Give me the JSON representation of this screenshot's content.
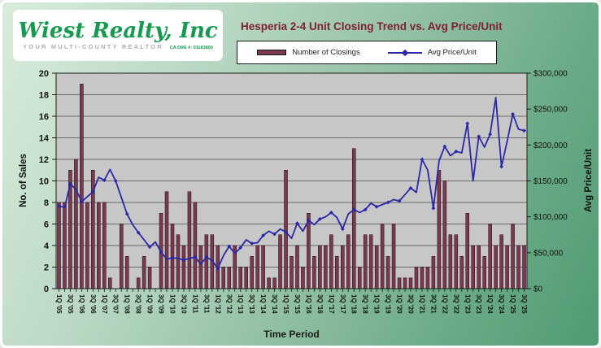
{
  "logo": {
    "name": "Wiest Realty, Inc",
    "tagline": "YOUR MULTI-COUNTY REALTOR",
    "license": "CA DRE #: 01183800",
    "brand_color": "#169a4f"
  },
  "chart": {
    "title": "Hesperia  2-4 Unit Closing Trend vs. Avg Price/Unit",
    "title_color": "#7d2030",
    "plot_bg": "#c7c7c7",
    "gridline_color": "#4a4a4a",
    "bar_color": "#7a3950",
    "line_color": "#2a28a6"
  },
  "chart_data": {
    "type": "bar",
    "subtype": "combo bar+line, dual axis",
    "title": "Hesperia  2-4 Unit Closing Trend vs. Avg Price/Unit",
    "xlabel": "Time Period",
    "legend_position": "top",
    "grid": true,
    "categories": [
      "1Q '05",
      "2Q '05",
      "3Q '05",
      "4Q '05",
      "1Q '06",
      "2Q '06",
      "3Q '06",
      "4Q '06",
      "1Q '07",
      "2Q '07",
      "3Q '07",
      "4Q '07",
      "1Q '08",
      "2Q '08",
      "3Q '08",
      "4Q '08",
      "1Q '09",
      "2Q '09",
      "3Q '09",
      "4Q '09",
      "1Q '10",
      "2Q '10",
      "3Q '10",
      "4Q '10",
      "1Q '11",
      "2Q '11",
      "3Q '11",
      "4Q '11",
      "1Q '12",
      "2Q '12",
      "3Q '12",
      "4Q '12",
      "1Q '13",
      "2Q '13",
      "3Q '13",
      "4Q '13",
      "1Q '14",
      "2Q '14",
      "3Q '14",
      "4Q '14",
      "1Q '15",
      "2Q '15",
      "3Q '15",
      "4Q '15",
      "1Q '16",
      "2Q '16",
      "3Q '16",
      "4Q '16",
      "1Q '17",
      "2Q '17",
      "3Q '17",
      "4Q '17",
      "1Q '18",
      "2Q '18",
      "3Q '18",
      "4Q '18",
      "1Q '19",
      "2Q '19",
      "3Q '19",
      "4Q '19",
      "1Q '20",
      "2Q '20",
      "3Q '20",
      "4Q '20",
      "1Q '21",
      "2Q '21",
      "3Q '21",
      "4Q '21",
      "1Q '22",
      "2Q '22",
      "3Q '22",
      "4Q '22",
      "1Q '23",
      "2Q '23",
      "3Q '23",
      "4Q '23",
      "1Q '24",
      "2Q '24",
      "3Q '24",
      "4Q '24",
      "1Q '25",
      "2Q '25",
      "3Q '25"
    ],
    "x_tick_labels": [
      "1Q '05",
      "3Q '05",
      "1Q '06",
      "3Q '06",
      "1Q '07",
      "3Q '07",
      "1Q '08",
      "3Q '08",
      "1Q '09",
      "3Q '09",
      "1Q '10",
      "3Q '10",
      "1Q '11",
      "3Q '11",
      "1Q '12",
      "3Q '12",
      "1Q '13",
      "3Q '13",
      "1Q '14",
      "3Q '14",
      "1Q '15",
      "3Q '15",
      "1Q '16",
      "3Q '16",
      "1Q '17",
      "3Q '17",
      "1Q '18",
      "3Q '18",
      "1Q '19",
      "3Q '19",
      "1Q '20",
      "3Q '20",
      "1Q '21",
      "3Q '21",
      "1Q '22",
      "3Q '22",
      "1Q '23",
      "3Q '23",
      "1Q '24",
      "3Q '24",
      "1Q '25",
      "3Q '25"
    ],
    "series": [
      {
        "name": "Number of Closings",
        "type": "bar",
        "axis": "left",
        "color": "#7a3950",
        "values": [
          8,
          8,
          11,
          12,
          19,
          8,
          11,
          8,
          8,
          1,
          0,
          6,
          3,
          0,
          1,
          3,
          2,
          0,
          7,
          9,
          6,
          5,
          4,
          9,
          8,
          4,
          5,
          5,
          4,
          2,
          2,
          4,
          2,
          2,
          3,
          4,
          4,
          1,
          1,
          5,
          11,
          3,
          4,
          2,
          7,
          3,
          4,
          4,
          5,
          3,
          4,
          5,
          13,
          2,
          5,
          5,
          4,
          6,
          3,
          6,
          1,
          1,
          1,
          2,
          2,
          2,
          3,
          11,
          10,
          5,
          5,
          3,
          7,
          4,
          4,
          3,
          6,
          4,
          5,
          4,
          6,
          4,
          4
        ]
      },
      {
        "name": "Avg Price/Unit",
        "type": "line",
        "axis": "right",
        "color": "#2a28a6",
        "values": [
          115000,
          113000,
          146000,
          138000,
          121000,
          128000,
          135000,
          155000,
          151000,
          166000,
          150000,
          127000,
          104000,
          89000,
          78000,
          68000,
          58000,
          65000,
          51000,
          41000,
          43000,
          42000,
          40000,
          42000,
          44000,
          34000,
          44000,
          39000,
          28000,
          46000,
          59000,
          49000,
          57000,
          68000,
          63000,
          64000,
          74000,
          80000,
          76000,
          83000,
          79000,
          70000,
          91000,
          80000,
          95000,
          89000,
          97000,
          100000,
          106000,
          99000,
          83000,
          104000,
          110000,
          106000,
          110000,
          119000,
          114000,
          117000,
          120000,
          124000,
          122000,
          131000,
          140000,
          134000,
          180000,
          165000,
          112000,
          178000,
          198000,
          185000,
          191000,
          189000,
          230000,
          150000,
          212000,
          197000,
          215000,
          266000,
          170000,
          205000,
          243000,
          222000,
          220000
        ]
      }
    ],
    "left_axis": {
      "label": "No. of Sales",
      "min": 0,
      "max": 20,
      "step": 2,
      "tick_labels": [
        "0",
        "2",
        "4",
        "6",
        "8",
        "10",
        "12",
        "14",
        "16",
        "18",
        "20"
      ]
    },
    "right_axis": {
      "label": "Avg Price/Unit",
      "min": 0,
      "max": 300000,
      "step": 50000,
      "tick_labels": [
        "$0",
        "$50,000",
        "$100,000",
        "$150,000",
        "$200,000",
        "$250,000",
        "$300,000"
      ]
    }
  }
}
